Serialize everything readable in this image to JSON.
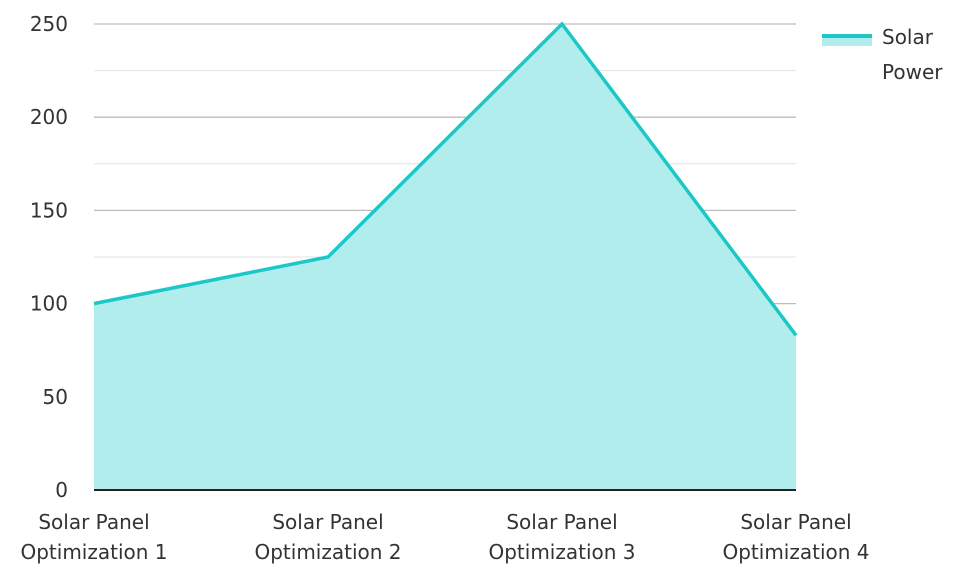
{
  "chart_data": {
    "type": "area",
    "title": "",
    "xlabel": "",
    "ylabel": "",
    "categories": [
      [
        "Solar Panel",
        "Optimization 1"
      ],
      [
        "Solar Panel",
        "Optimization 2"
      ],
      [
        "Solar Panel",
        "Optimization 3"
      ],
      [
        "Solar Panel",
        "Optimization 4"
      ]
    ],
    "y_ticks": [
      "0",
      "50",
      "100",
      "150",
      "200",
      "250"
    ],
    "ylim": [
      0,
      250
    ],
    "grid": true,
    "legend_position": "top-right",
    "legend_label_lines": [
      "Solar",
      "Power"
    ],
    "series": [
      {
        "name": "Solar Power",
        "values": [
          100,
          125,
          250,
          83
        ],
        "line_color": "#1CC7C7",
        "fill_color": "#B2EDED"
      }
    ]
  }
}
